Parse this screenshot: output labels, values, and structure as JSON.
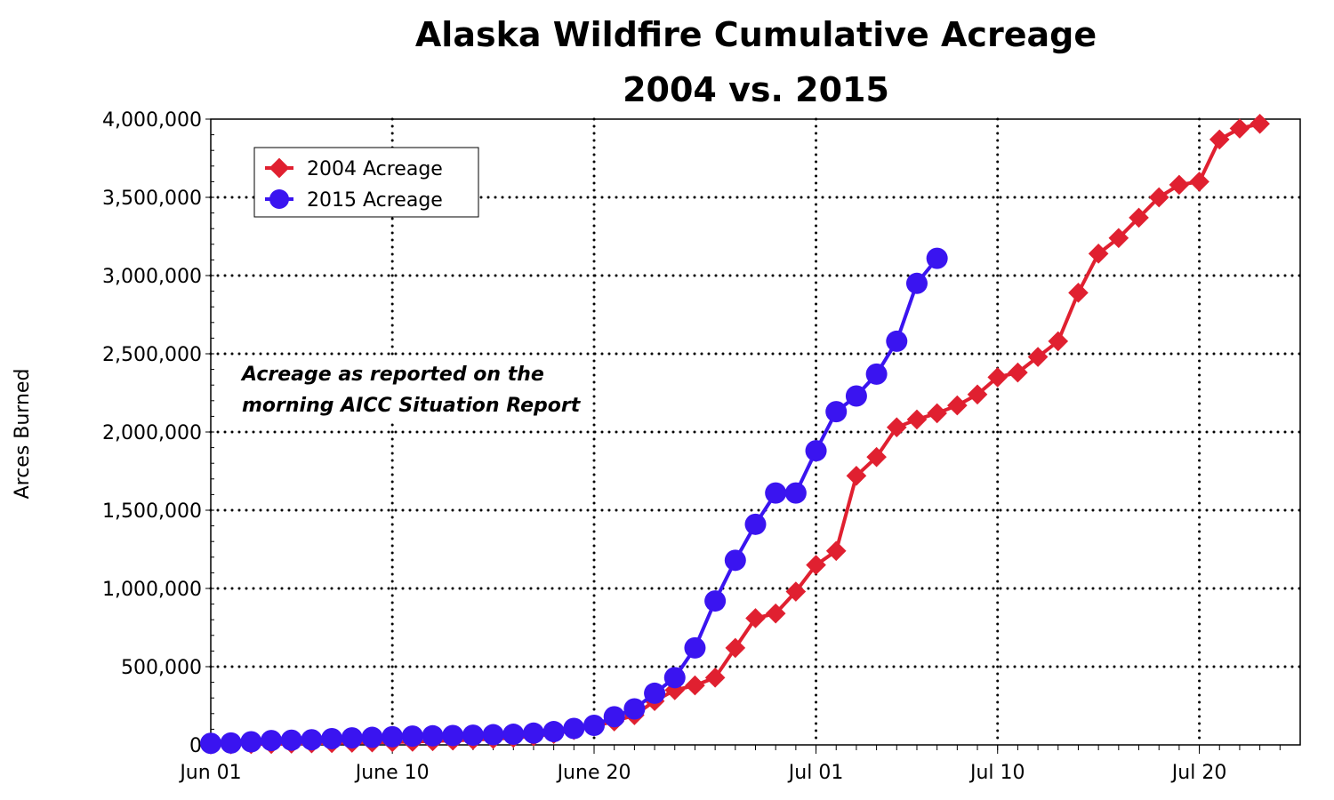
{
  "chart_data": {
    "type": "line",
    "title": "Alaska Wildfire Cumulative Acreage",
    "subtitle": "2004 vs. 2015",
    "xlabel": "",
    "ylabel": "Arces Burned",
    "x_unit": "days since Jun 01",
    "xlim": [
      0,
      54
    ],
    "ylim": [
      0,
      4000000
    ],
    "x_ticks": [
      {
        "day": 0,
        "label": "Jun 01"
      },
      {
        "day": 9,
        "label": "June 10"
      },
      {
        "day": 19,
        "label": "June 20"
      },
      {
        "day": 30,
        "label": "Jul 01"
      },
      {
        "day": 39,
        "label": "Jul 10"
      },
      {
        "day": 49,
        "label": "Jul 20"
      }
    ],
    "y_ticks": [
      {
        "v": 0,
        "label": "0"
      },
      {
        "v": 500000,
        "label": "500,000"
      },
      {
        "v": 1000000,
        "label": "1,000,000"
      },
      {
        "v": 1500000,
        "label": "1,500,000"
      },
      {
        "v": 2000000,
        "label": "2,000,000"
      },
      {
        "v": 2500000,
        "label": "2,500,000"
      },
      {
        "v": 3000000,
        "label": "3,000,000"
      },
      {
        "v": 3500000,
        "label": "3,500,000"
      },
      {
        "v": 4000000,
        "label": "4,000,000"
      }
    ],
    "grid": true,
    "legend_position": "top-left",
    "annotation": [
      "Acreage as reported on the",
      "morning AICC Situation Report"
    ],
    "series": [
      {
        "name": "2004 Acreage",
        "color": "#e02030",
        "marker": "diamond",
        "values": [
          3000,
          4000,
          5000,
          6000,
          8000,
          10000,
          12000,
          14000,
          16000,
          18000,
          20000,
          24000,
          28000,
          32000,
          38000,
          45000,
          55000,
          70000,
          95000,
          120000,
          150000,
          190000,
          280000,
          350000,
          380000,
          430000,
          620000,
          810000,
          840000,
          980000,
          1150000,
          1240000,
          1720000,
          1840000,
          2030000,
          2080000,
          2120000,
          2170000,
          2240000,
          2350000,
          2380000,
          2480000,
          2580000,
          2890000,
          3140000,
          3240000,
          3370000,
          3500000,
          3580000,
          3600000,
          3870000,
          3940000,
          3970000
        ]
      },
      {
        "name": "2015 Acreage",
        "color": "#3a14f0",
        "marker": "circle",
        "values": [
          10000,
          12000,
          20000,
          28000,
          30000,
          33000,
          40000,
          45000,
          48000,
          52000,
          56000,
          58000,
          60000,
          62000,
          65000,
          68000,
          75000,
          85000,
          105000,
          125000,
          180000,
          230000,
          330000,
          430000,
          620000,
          920000,
          1180000,
          1410000,
          1610000,
          1610000,
          1880000,
          2130000,
          2230000,
          2370000,
          2580000,
          2950000,
          3110000
        ]
      }
    ]
  }
}
